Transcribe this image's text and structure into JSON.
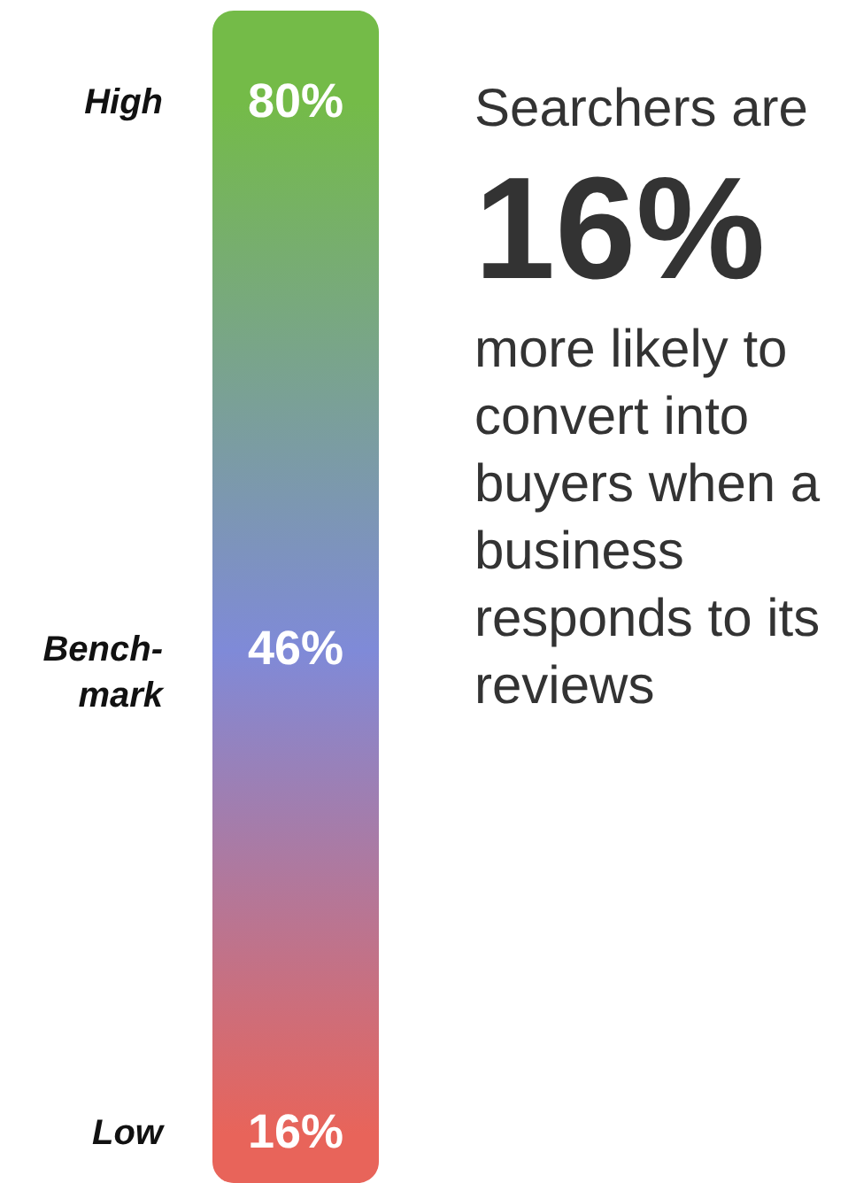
{
  "chart_data": {
    "type": "other",
    "categories": [
      "High",
      "Bench-mark",
      "Low"
    ],
    "values": [
      80,
      46,
      16
    ],
    "value_labels": [
      "80%",
      "46%",
      "16%"
    ],
    "colors": [
      "#74bb48",
      "#7f8ad8",
      "#e8645a"
    ],
    "annotations": [
      "Searchers are",
      "16%",
      "more likely to convert into buyers when a business responds to its reviews"
    ]
  }
}
